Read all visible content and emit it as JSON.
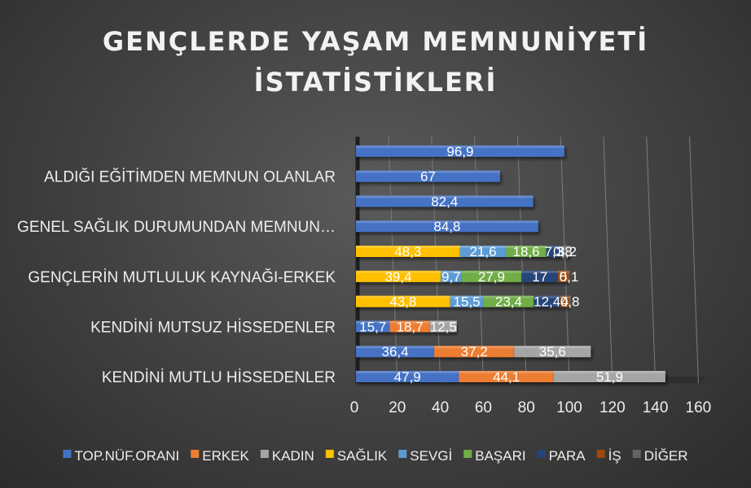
{
  "chart_data": {
    "type": "bar",
    "orientation": "horizontal",
    "stacked": true,
    "title": "GENÇLERDE YAŞAM MEMNUNİYETİ İSTATİSTİKLERİ",
    "title_lines": [
      "GENÇLERDE YAŞAM MEMNUNİYETİ",
      "İSTATİSTİKLERİ"
    ],
    "categories": [
      "KENDİNİ MUTLU HİSSEDENLER",
      "",
      "KENDİNİ MUTSUZ HİSSEDENLER",
      "",
      "GENÇLERİN MUTLULUK KAYNAĞI-ERKEK",
      "",
      "GENEL SAĞLIK DURUMUNDAN MEMNUN…",
      "",
      "ALDIĞI EĞİTİMDEN MEMNUN OLANLAR",
      ""
    ],
    "series": [
      {
        "name": "TOP.NÜF.ORANI",
        "color": "#4472C4",
        "values": [
          47.9,
          36.4,
          15.7,
          null,
          null,
          null,
          84.8,
          82.4,
          67,
          96.9
        ]
      },
      {
        "name": "ERKEK",
        "color": "#ED7D31",
        "values": [
          44.1,
          37.2,
          18.7,
          null,
          null,
          null,
          null,
          null,
          null,
          null
        ]
      },
      {
        "name": "KADIN",
        "color": "#A5A5A5",
        "values": [
          51.9,
          35.6,
          12.5,
          null,
          null,
          null,
          null,
          null,
          null,
          null
        ]
      },
      {
        "name": "SAĞLIK",
        "color": "#FFC000",
        "values": [
          null,
          null,
          null,
          43.8,
          39.4,
          48.3,
          null,
          null,
          null,
          null
        ]
      },
      {
        "name": "SEVGİ",
        "color": "#5B9BD5",
        "values": [
          null,
          null,
          null,
          15.5,
          9.7,
          21.6,
          null,
          null,
          null,
          null
        ]
      },
      {
        "name": "BAŞARI",
        "color": "#70AD47",
        "values": [
          null,
          null,
          null,
          23.4,
          27.9,
          18.6,
          null,
          null,
          null,
          null
        ]
      },
      {
        "name": "PARA",
        "color": "#264478",
        "values": [
          null,
          null,
          null,
          12.4,
          17,
          7.3,
          null,
          null,
          null,
          null
        ]
      },
      {
        "name": "İŞ",
        "color": "#9E480E",
        "values": [
          null,
          null,
          null,
          4,
          5,
          0.8,
          null,
          null,
          null,
          null
        ]
      },
      {
        "name": "DİĞER",
        "color": "#636363",
        "values": [
          null,
          null,
          null,
          0.8,
          0.1,
          3.2,
          null,
          null,
          null,
          null
        ]
      }
    ],
    "xlim": [
      0,
      160
    ],
    "x_ticks": [
      0,
      20,
      40,
      60,
      80,
      100,
      120,
      140,
      160
    ],
    "grid": true,
    "legend_position": "bottom"
  }
}
